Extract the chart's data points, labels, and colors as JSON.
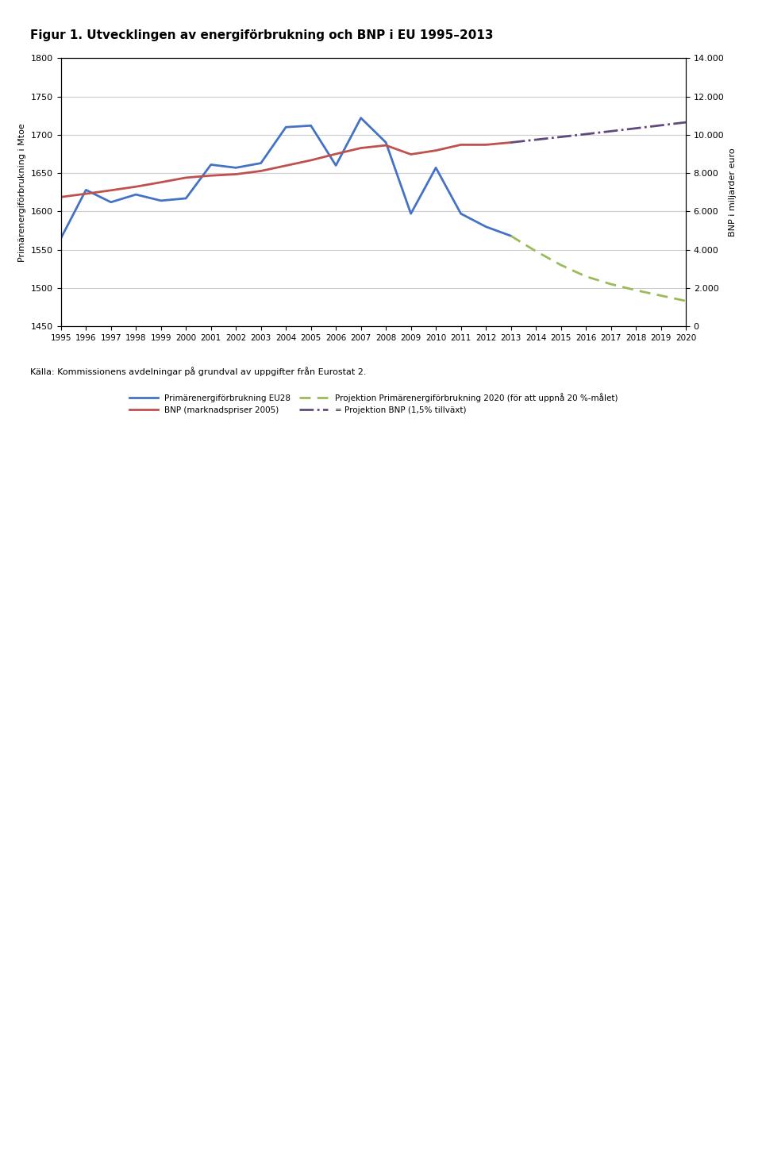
{
  "title": "Figur 1. Utvecklingen av energiförbrukning och BNP i EU 1995–2013",
  "ylabel_left": "Primärenergiförbrukning i Mtoe",
  "ylabel_right": "BNP i miljarder euro",
  "ylim_left": [
    1450,
    1800
  ],
  "ylim_right": [
    0,
    14000
  ],
  "years_hist": [
    1995,
    1996,
    1997,
    1998,
    1999,
    2000,
    2001,
    2002,
    2003,
    2004,
    2005,
    2006,
    2007,
    2008,
    2009,
    2010,
    2011,
    2012,
    2013
  ],
  "energy_eu28": [
    1565,
    1628,
    1612,
    1622,
    1614,
    1617,
    1661,
    1657,
    1663,
    1710,
    1712,
    1660,
    1722,
    1690,
    1597,
    1657,
    1597,
    1580,
    1568
  ],
  "gdp_hist": [
    6750,
    6920,
    7100,
    7290,
    7520,
    7760,
    7870,
    7940,
    8110,
    8390,
    8670,
    9000,
    9310,
    9450,
    8980,
    9180,
    9480,
    9480,
    9600
  ],
  "years_proj_energy": [
    2013,
    2014,
    2015,
    2016,
    2017,
    2018,
    2019,
    2020
  ],
  "proj_energy_20pct": [
    1568,
    1548,
    1530,
    1515,
    1505,
    1497,
    1490,
    1483
  ],
  "years_proj_gdp": [
    2013,
    2014,
    2015,
    2016,
    2017,
    2018,
    2019,
    2020
  ],
  "proj_gdp_15pct": [
    9600,
    9744,
    9889,
    10036,
    10187,
    10340,
    10495,
    10653
  ],
  "legend_energy": "Primärenergiförbrukning EU28",
  "legend_gdp": "BNP (marknadspriser 2005)",
  "legend_proj_energy": "Projektion Primärenergiförbrukning 2020 (för att uppnå 20 %-målet)",
  "legend_proj_gdp": "= Projektion BNP (1,5% tillväxt)",
  "color_energy": "#4472C4",
  "color_gdp": "#C0504D",
  "color_proj_energy": "#9BBB59",
  "color_proj_gdp": "#604A7B",
  "source_text": "Källa: Kommissionens avdelningar på grundval av uppgifter från Eurostat 2.",
  "yticks_left": [
    1450,
    1500,
    1550,
    1600,
    1650,
    1700,
    1750,
    1800
  ],
  "yticks_right": [
    0,
    2000,
    4000,
    6000,
    8000,
    10000,
    12000,
    14000
  ],
  "ytick_labels_right": [
    "0",
    "2.000",
    "4.000",
    "6.000",
    "8.000",
    "10.000",
    "12.000",
    "14.000"
  ]
}
